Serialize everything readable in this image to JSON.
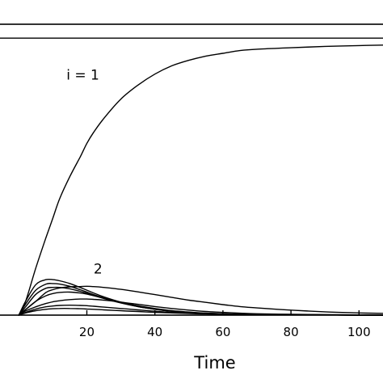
{
  "chart_data": {
    "type": "line",
    "title": "",
    "xlabel": "Time",
    "ylabel": "",
    "xlim": [
      -6,
      108
    ],
    "ylim": [
      0,
      1.05
    ],
    "x_ticks": [
      {
        "value": 20,
        "label": "20"
      },
      {
        "value": 40,
        "label": "40"
      },
      {
        "value": 60,
        "label": "60"
      },
      {
        "value": 80,
        "label": "80"
      },
      {
        "value": 100,
        "label": "100"
      }
    ],
    "grid": false,
    "legend": "none",
    "reference_line_y": 1.0,
    "annotations": [
      {
        "text": "i = 1",
        "x": 14,
        "y": 0.85
      },
      {
        "text": "2",
        "x": 22,
        "y": 0.15
      }
    ],
    "x": [
      0,
      2,
      5,
      8,
      10,
      12,
      15,
      18,
      20,
      22,
      25,
      30,
      35,
      40,
      45,
      50,
      55,
      60,
      65,
      70,
      80,
      90,
      100,
      108
    ],
    "series": [
      {
        "name": "",
        "values": [
          0.0,
          0.05,
          0.17,
          0.28,
          0.35,
          0.42,
          0.5,
          0.57,
          0.62,
          0.66,
          0.71,
          0.78,
          0.83,
          0.87,
          0.9,
          0.92,
          0.935,
          0.945,
          0.955,
          0.96,
          0.965,
          0.97,
          0.973,
          0.975
        ]
      },
      {
        "name": "",
        "values": [
          0.0,
          0.02,
          0.05,
          0.082,
          0.092,
          0.098,
          0.102,
          0.103,
          0.104,
          0.103,
          0.1,
          0.093,
          0.084,
          0.074,
          0.064,
          0.054,
          0.046,
          0.038,
          0.031,
          0.026,
          0.018,
          0.012,
          0.008,
          0.006
        ]
      },
      {
        "name": "",
        "values": [
          0.0,
          0.05,
          0.11,
          0.128,
          0.128,
          0.124,
          0.114,
          0.1,
          0.09,
          0.08,
          0.066,
          0.047,
          0.033,
          0.022,
          0.015,
          0.01,
          0.007,
          0.005,
          0.004,
          0.003,
          0.002,
          0.001,
          0.001,
          0.001
        ]
      },
      {
        "name": "",
        "values": [
          0.0,
          0.04,
          0.09,
          0.112,
          0.114,
          0.112,
          0.104,
          0.092,
          0.083,
          0.074,
          0.062,
          0.045,
          0.031,
          0.021,
          0.014,
          0.009,
          0.006,
          0.004,
          0.003,
          0.002,
          0.001,
          0.001,
          0.0,
          0.0
        ]
      },
      {
        "name": "",
        "values": [
          0.0,
          0.03,
          0.075,
          0.097,
          0.1,
          0.1,
          0.095,
          0.086,
          0.079,
          0.071,
          0.06,
          0.044,
          0.031,
          0.021,
          0.014,
          0.009,
          0.006,
          0.004,
          0.003,
          0.002,
          0.001,
          0.001,
          0.0,
          0.0
        ]
      },
      {
        "name": "",
        "values": [
          0.0,
          0.02,
          0.05,
          0.07,
          0.078,
          0.082,
          0.083,
          0.08,
          0.076,
          0.07,
          0.061,
          0.047,
          0.034,
          0.024,
          0.016,
          0.011,
          0.007,
          0.005,
          0.003,
          0.002,
          0.001,
          0.001,
          0.0,
          0.0
        ]
      },
      {
        "name": "",
        "values": [
          0.0,
          0.015,
          0.03,
          0.042,
          0.048,
          0.052,
          0.056,
          0.058,
          0.058,
          0.057,
          0.054,
          0.047,
          0.039,
          0.031,
          0.024,
          0.018,
          0.013,
          0.01,
          0.007,
          0.005,
          0.003,
          0.002,
          0.001,
          0.001
        ]
      },
      {
        "name": "",
        "values": [
          0.0,
          0.01,
          0.022,
          0.03,
          0.033,
          0.035,
          0.036,
          0.035,
          0.034,
          0.032,
          0.029,
          0.024,
          0.019,
          0.014,
          0.01,
          0.007,
          0.005,
          0.004,
          0.003,
          0.002,
          0.001,
          0.001,
          0.0,
          0.0
        ]
      },
      {
        "name": "",
        "values": [
          0.0,
          0.008,
          0.016,
          0.021,
          0.023,
          0.024,
          0.024,
          0.023,
          0.022,
          0.021,
          0.019,
          0.016,
          0.013,
          0.01,
          0.008,
          0.006,
          0.004,
          0.003,
          0.002,
          0.002,
          0.001,
          0.001,
          0.0,
          0.0
        ]
      }
    ]
  }
}
